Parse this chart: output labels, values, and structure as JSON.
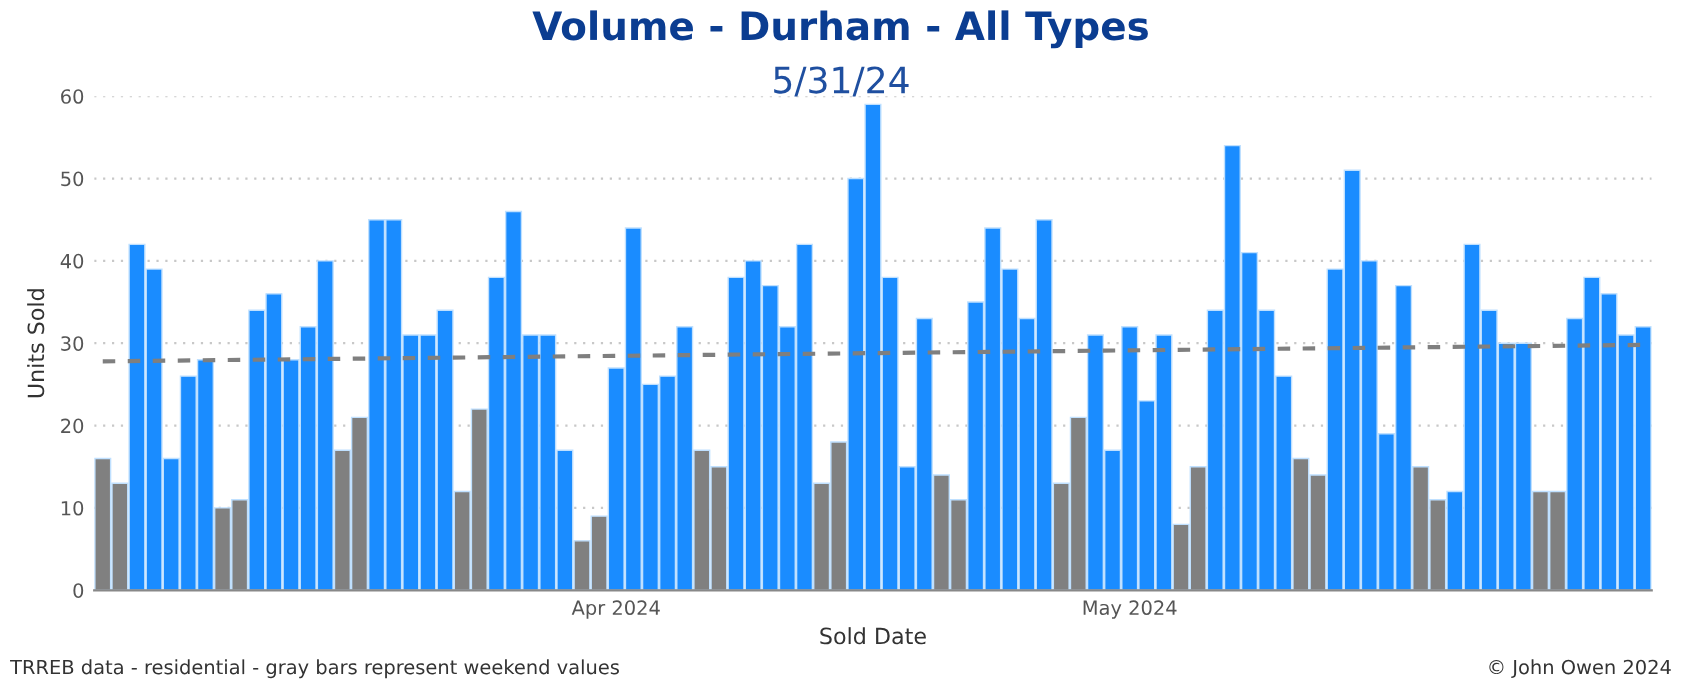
{
  "chart_data": {
    "type": "bar",
    "title": "Volume - Durham - All Types",
    "subtitle": "5/31/24",
    "xlabel": "Sold Date",
    "ylabel": "Units Sold",
    "x": [
      "2024-03-02",
      "2024-03-03",
      "2024-03-04",
      "2024-03-05",
      "2024-03-06",
      "2024-03-07",
      "2024-03-08",
      "2024-03-09",
      "2024-03-10",
      "2024-03-11",
      "2024-03-12",
      "2024-03-13",
      "2024-03-14",
      "2024-03-15",
      "2024-03-16",
      "2024-03-17",
      "2024-03-18",
      "2024-03-19",
      "2024-03-20",
      "2024-03-21",
      "2024-03-22",
      "2024-03-23",
      "2024-03-24",
      "2024-03-25",
      "2024-03-26",
      "2024-03-27",
      "2024-03-28",
      "2024-03-29",
      "2024-03-30",
      "2024-03-31",
      "2024-04-01",
      "2024-04-02",
      "2024-04-03",
      "2024-04-04",
      "2024-04-05",
      "2024-04-06",
      "2024-04-07",
      "2024-04-08",
      "2024-04-09",
      "2024-04-10",
      "2024-04-11",
      "2024-04-12",
      "2024-04-13",
      "2024-04-14",
      "2024-04-15",
      "2024-04-16",
      "2024-04-17",
      "2024-04-18",
      "2024-04-19",
      "2024-04-20",
      "2024-04-21",
      "2024-04-22",
      "2024-04-23",
      "2024-04-24",
      "2024-04-25",
      "2024-04-26",
      "2024-04-27",
      "2024-04-28",
      "2024-04-29",
      "2024-04-30",
      "2024-05-01",
      "2024-05-02",
      "2024-05-03",
      "2024-05-04",
      "2024-05-05",
      "2024-05-06",
      "2024-05-07",
      "2024-05-08",
      "2024-05-09",
      "2024-05-10",
      "2024-05-11",
      "2024-05-12",
      "2024-05-13",
      "2024-05-14",
      "2024-05-15",
      "2024-05-16",
      "2024-05-17",
      "2024-05-18",
      "2024-05-19",
      "2024-05-20",
      "2024-05-21",
      "2024-05-22",
      "2024-05-23",
      "2024-05-24",
      "2024-05-25",
      "2024-05-26",
      "2024-05-27",
      "2024-05-28",
      "2024-05-29",
      "2024-05-30",
      "2024-05-31"
    ],
    "series": [
      {
        "values": [
          16,
          13,
          42,
          39,
          16,
          26,
          28,
          10,
          11,
          34,
          36,
          28,
          32,
          40,
          17,
          21,
          45,
          45,
          31,
          31,
          34,
          12,
          22,
          38,
          46,
          31,
          31,
          17,
          6,
          9,
          27,
          44,
          25,
          26,
          32,
          17,
          15,
          38,
          40,
          37,
          32,
          42,
          13,
          18,
          50,
          59,
          38,
          15,
          33,
          14,
          11,
          35,
          44,
          39,
          33,
          45,
          13,
          21,
          31,
          17,
          32,
          23,
          31,
          8,
          15,
          34,
          54,
          41,
          34,
          26,
          16,
          14,
          39,
          51,
          40,
          19,
          37,
          15,
          11,
          12,
          42,
          34,
          30,
          30,
          12,
          12,
          33,
          38,
          36,
          31,
          32
        ],
        "colors": [
          "#808080",
          "#808080",
          "#1a8cff",
          "#1a8cff",
          "#1a8cff",
          "#1a8cff",
          "#1a8cff",
          "#808080",
          "#808080",
          "#1a8cff",
          "#1a8cff",
          "#1a8cff",
          "#1a8cff",
          "#1a8cff",
          "#808080",
          "#808080",
          "#1a8cff",
          "#1a8cff",
          "#1a8cff",
          "#1a8cff",
          "#1a8cff",
          "#808080",
          "#808080",
          "#1a8cff",
          "#1a8cff",
          "#1a8cff",
          "#1a8cff",
          "#1a8cff",
          "#808080",
          "#808080",
          "#1a8cff",
          "#1a8cff",
          "#1a8cff",
          "#1a8cff",
          "#1a8cff",
          "#808080",
          "#808080",
          "#1a8cff",
          "#1a8cff",
          "#1a8cff",
          "#1a8cff",
          "#1a8cff",
          "#808080",
          "#808080",
          "#1a8cff",
          "#1a8cff",
          "#1a8cff",
          "#1a8cff",
          "#1a8cff",
          "#808080",
          "#808080",
          "#1a8cff",
          "#1a8cff",
          "#1a8cff",
          "#1a8cff",
          "#1a8cff",
          "#808080",
          "#808080",
          "#1a8cff",
          "#1a8cff",
          "#1a8cff",
          "#1a8cff",
          "#1a8cff",
          "#808080",
          "#808080",
          "#1a8cff",
          "#1a8cff",
          "#1a8cff",
          "#1a8cff",
          "#1a8cff",
          "#808080",
          "#808080",
          "#1a8cff",
          "#1a8cff",
          "#1a8cff",
          "#1a8cff",
          "#1a8cff",
          "#808080",
          "#808080",
          "#1a8cff",
          "#1a8cff",
          "#1a8cff",
          "#1a8cff",
          "#1a8cff",
          "#808080",
          "#808080",
          "#1a8cff",
          "#1a8cff",
          "#1a8cff",
          "#1a8cff",
          "#1a8cff"
        ]
      },
      {
        "type": "line",
        "x": [
          "2024-03-02",
          "2024-05-31"
        ],
        "values": [
          27.8,
          29.8
        ],
        "color": "#7f7f7f",
        "line_style": "dashed"
      }
    ],
    "ylim": [
      0,
      60
    ],
    "yticks": [
      0,
      10,
      20,
      30,
      40,
      50,
      60
    ],
    "xlim": [
      "2024-03-01T12:00",
      "2024-05-31T12:00"
    ],
    "xticks": [
      {
        "value": "2024-04-01",
        "label": "Apr 2024"
      },
      {
        "value": "2024-05-01",
        "label": "May 2024"
      }
    ],
    "grid": "y",
    "legend": false,
    "annotations": [
      "TRREB data - residential - gray bars represent weekend values",
      "© John Owen 2024"
    ]
  }
}
